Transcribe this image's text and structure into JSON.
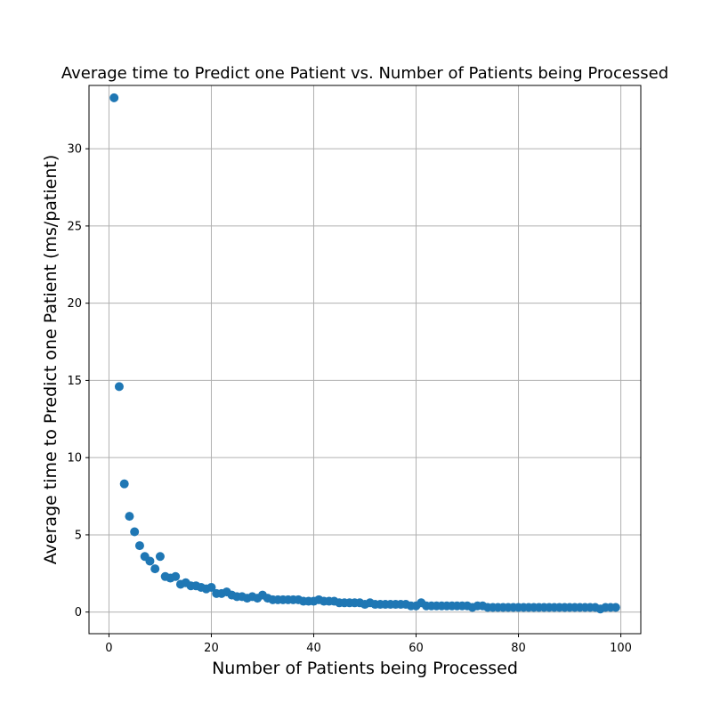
{
  "chart_data": {
    "type": "scatter",
    "title": "Average time to Predict one Patient vs. Number of Patients being Processed",
    "xlabel": "Number of Patients being Processed",
    "ylabel": "Average time to Predict one Patient (ms/patient)",
    "xlim": [
      -3.9,
      103.9
    ],
    "ylim": [
      -1.4,
      34.1
    ],
    "xticks": [
      0,
      20,
      40,
      60,
      80,
      100
    ],
    "yticks": [
      0,
      5,
      10,
      15,
      20,
      25,
      30
    ],
    "grid": true,
    "marker_color": "#1f77b4",
    "series": [
      {
        "x": [
          1,
          2,
          3,
          4,
          5,
          6,
          7,
          8,
          9,
          10,
          11,
          12,
          13,
          14,
          15,
          16,
          17,
          18,
          19,
          20,
          21,
          22,
          23,
          24,
          25,
          26,
          27,
          28,
          29,
          30,
          31,
          32,
          33,
          34,
          35,
          36,
          37,
          38,
          39,
          40,
          41,
          42,
          43,
          44,
          45,
          46,
          47,
          48,
          49,
          50,
          51,
          52,
          53,
          54,
          55,
          56,
          57,
          58,
          59,
          60,
          61,
          62,
          63,
          64,
          65,
          66,
          67,
          68,
          69,
          70,
          71,
          72,
          73,
          74,
          75,
          76,
          77,
          78,
          79,
          80,
          81,
          82,
          83,
          84,
          85,
          86,
          87,
          88,
          89,
          90,
          91,
          92,
          93,
          94,
          95,
          96,
          97,
          98,
          99
        ],
        "y": [
          33.3,
          14.6,
          8.3,
          6.2,
          5.2,
          4.3,
          3.6,
          3.3,
          2.8,
          3.6,
          2.3,
          2.2,
          2.3,
          1.8,
          1.9,
          1.7,
          1.7,
          1.6,
          1.5,
          1.6,
          1.2,
          1.2,
          1.3,
          1.1,
          1.0,
          1.0,
          0.9,
          1.0,
          0.9,
          1.1,
          0.9,
          0.8,
          0.8,
          0.8,
          0.8,
          0.8,
          0.8,
          0.7,
          0.7,
          0.7,
          0.8,
          0.7,
          0.7,
          0.7,
          0.6,
          0.6,
          0.6,
          0.6,
          0.6,
          0.5,
          0.6,
          0.5,
          0.5,
          0.5,
          0.5,
          0.5,
          0.5,
          0.5,
          0.4,
          0.4,
          0.6,
          0.4,
          0.4,
          0.4,
          0.4,
          0.4,
          0.4,
          0.4,
          0.4,
          0.4,
          0.3,
          0.4,
          0.4,
          0.3,
          0.3,
          0.3,
          0.3,
          0.3,
          0.3,
          0.3,
          0.3,
          0.3,
          0.3,
          0.3,
          0.3,
          0.3,
          0.3,
          0.3,
          0.3,
          0.3,
          0.3,
          0.3,
          0.3,
          0.3,
          0.3,
          0.2,
          0.3,
          0.3,
          0.3
        ]
      }
    ]
  }
}
